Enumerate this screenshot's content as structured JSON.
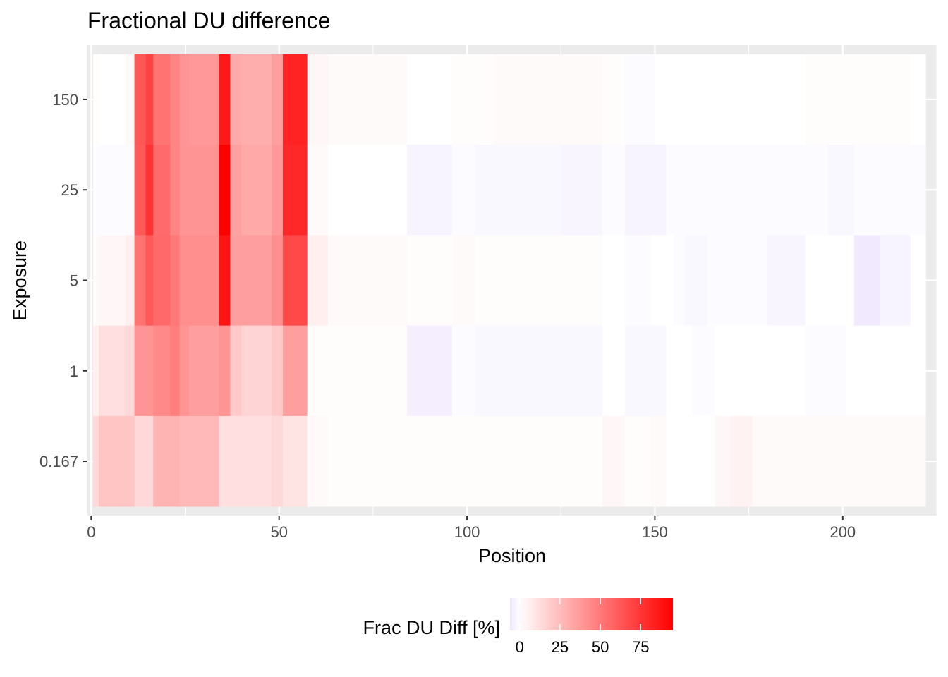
{
  "chart_data": {
    "type": "heatmap",
    "title": "Fractional DU difference",
    "xlabel": "Position",
    "ylabel": "Exposure",
    "xlim": [
      -1,
      225
    ],
    "x_ticks": [
      0,
      50,
      100,
      150,
      200
    ],
    "y_categories": [
      "0.167",
      "1",
      "5",
      "25",
      "150"
    ],
    "grid": true,
    "legend": {
      "title": "Frac DU Diff [%]",
      "position": "bottom",
      "ticks": [
        0,
        25,
        50,
        75
      ],
      "range": [
        -6,
        95
      ],
      "colors": {
        "low": "#eee6ff",
        "mid": "#ffffff",
        "high": "#ff0000"
      }
    },
    "series": [
      {
        "name": "150",
        "segments": [
          [
            0.5,
            2,
            1
          ],
          [
            2,
            9,
            0
          ],
          [
            9,
            11.5,
            2
          ],
          [
            11.5,
            14.5,
            63
          ],
          [
            14.5,
            16.5,
            70
          ],
          [
            16.5,
            21,
            52
          ],
          [
            21,
            23.5,
            46
          ],
          [
            23.5,
            26,
            40
          ],
          [
            26,
            34,
            38
          ],
          [
            34,
            37,
            86
          ],
          [
            37,
            40,
            32
          ],
          [
            40,
            48,
            30
          ],
          [
            48,
            51,
            36
          ],
          [
            51,
            57.5,
            82
          ],
          [
            57.5,
            63,
            3
          ],
          [
            63,
            84,
            2
          ],
          [
            84,
            96,
            0
          ],
          [
            96,
            107,
            1
          ],
          [
            107,
            136,
            2
          ],
          [
            136,
            142,
            1
          ],
          [
            142,
            150,
            -1
          ],
          [
            150,
            190,
            0
          ],
          [
            190,
            218,
            1
          ],
          [
            218,
            222,
            0
          ]
        ]
      },
      {
        "name": "25",
        "segments": [
          [
            0.5,
            11.5,
            -1
          ],
          [
            11.5,
            14.5,
            62
          ],
          [
            14.5,
            16.5,
            76
          ],
          [
            16.5,
            21,
            55
          ],
          [
            21,
            23.5,
            46
          ],
          [
            23.5,
            26,
            40
          ],
          [
            26,
            34,
            40
          ],
          [
            34,
            37,
            96
          ],
          [
            37,
            40,
            35
          ],
          [
            40,
            48,
            32
          ],
          [
            48,
            51,
            38
          ],
          [
            51,
            57.5,
            80
          ],
          [
            57.5,
            63,
            2
          ],
          [
            63,
            84,
            0
          ],
          [
            84,
            96,
            -3
          ],
          [
            96,
            102,
            -1
          ],
          [
            102,
            125,
            -2
          ],
          [
            125,
            136,
            -2.5
          ],
          [
            136,
            142,
            -1
          ],
          [
            142,
            153,
            -3
          ],
          [
            153,
            166,
            -1
          ],
          [
            166,
            196,
            -1
          ],
          [
            196,
            203,
            -2
          ],
          [
            203,
            222,
            -1
          ]
        ]
      },
      {
        "name": "5",
        "segments": [
          [
            0.5,
            2,
            2
          ],
          [
            2,
            9,
            3
          ],
          [
            9,
            11.5,
            6
          ],
          [
            11.5,
            14.5,
            52
          ],
          [
            14.5,
            16.5,
            62
          ],
          [
            16.5,
            21,
            56
          ],
          [
            21,
            23.5,
            50
          ],
          [
            23.5,
            26,
            42
          ],
          [
            26,
            34,
            42
          ],
          [
            34,
            37,
            88
          ],
          [
            37,
            40,
            36
          ],
          [
            40,
            48,
            36
          ],
          [
            48,
            51,
            42
          ],
          [
            51,
            57.5,
            68
          ],
          [
            57.5,
            63,
            6
          ],
          [
            63,
            84,
            2
          ],
          [
            84,
            96,
            1
          ],
          [
            96,
            102,
            2
          ],
          [
            102,
            136,
            1
          ],
          [
            136,
            142,
            0
          ],
          [
            142,
            149,
            -1
          ],
          [
            149,
            155,
            0
          ],
          [
            155,
            158,
            -1
          ],
          [
            158,
            164,
            -2
          ],
          [
            164,
            176,
            -1
          ],
          [
            176,
            180,
            -1
          ],
          [
            180,
            190,
            -2.5
          ],
          [
            190,
            203,
            0
          ],
          [
            203,
            210,
            -5
          ],
          [
            210,
            218,
            -3
          ],
          [
            218,
            222,
            0
          ]
        ]
      },
      {
        "name": "1",
        "segments": [
          [
            0.5,
            2,
            6
          ],
          [
            2,
            9,
            12
          ],
          [
            9,
            11.5,
            14
          ],
          [
            11.5,
            16.5,
            40
          ],
          [
            16.5,
            21,
            44
          ],
          [
            21,
            23.5,
            48
          ],
          [
            23.5,
            26,
            40
          ],
          [
            26,
            34,
            36
          ],
          [
            34,
            37,
            40
          ],
          [
            37,
            40,
            20
          ],
          [
            40,
            48,
            16
          ],
          [
            48,
            51,
            20
          ],
          [
            51,
            57.5,
            36
          ],
          [
            57.5,
            84,
            1
          ],
          [
            84,
            96,
            -4
          ],
          [
            96,
            102,
            -1
          ],
          [
            102,
            136,
            -2
          ],
          [
            136,
            142,
            0
          ],
          [
            142,
            153,
            -2
          ],
          [
            153,
            160,
            0
          ],
          [
            160,
            166,
            -1
          ],
          [
            166,
            190,
            0
          ],
          [
            190,
            201,
            -1
          ],
          [
            201,
            218,
            0
          ],
          [
            218,
            222,
            0
          ]
        ]
      },
      {
        "name": "0.167",
        "segments": [
          [
            0.5,
            2,
            14
          ],
          [
            2,
            11.5,
            22
          ],
          [
            11.5,
            16.5,
            14
          ],
          [
            16.5,
            23.5,
            28
          ],
          [
            23.5,
            34,
            26
          ],
          [
            34,
            48,
            12
          ],
          [
            48,
            51,
            14
          ],
          [
            51,
            57.5,
            10
          ],
          [
            57.5,
            63,
            2
          ],
          [
            63,
            136,
            1
          ],
          [
            136,
            142,
            3
          ],
          [
            142,
            149,
            1
          ],
          [
            149,
            153,
            2
          ],
          [
            153,
            166,
            0
          ],
          [
            166,
            170,
            3
          ],
          [
            170,
            176,
            5
          ],
          [
            176,
            222,
            2
          ]
        ]
      }
    ]
  }
}
